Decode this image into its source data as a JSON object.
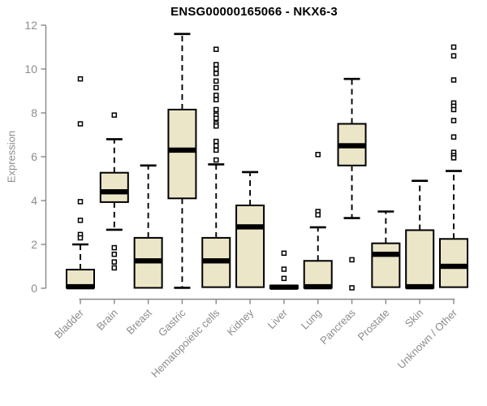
{
  "title": "ENSG00000165066 - NKX6-3",
  "chart_data": {
    "type": "boxplot",
    "title": "ENSG00000165066 - NKX6-3",
    "xlabel": "",
    "ylabel": "Expression",
    "ylim": [
      0,
      12
    ],
    "yticks": [
      0,
      2,
      4,
      6,
      8,
      10,
      12
    ],
    "grid": false,
    "legend": "none",
    "categories": [
      "Bladder",
      "Brain",
      "Breast",
      "Gastric",
      "Hematopoietic cells",
      "Kidney",
      "Liver",
      "Lung",
      "Pancreas",
      "Prostate",
      "Skin",
      "Unknown / Other"
    ],
    "boxes": [
      {
        "category": "Bladder",
        "whisker_low": 0.02,
        "q1": 0.02,
        "median": 0.07,
        "q3": 0.85,
        "whisker_high": 2.0,
        "outliers": [
          9.55,
          7.5,
          3.95,
          3.1,
          2.45,
          2.3
        ]
      },
      {
        "category": "Brain",
        "whisker_low": 2.67,
        "q1": 3.93,
        "median": 4.4,
        "q3": 5.27,
        "whisker_high": 6.8,
        "outliers": [
          7.9,
          1.85,
          1.55,
          1.2,
          0.93
        ]
      },
      {
        "category": "Breast",
        "whisker_low": 0.02,
        "q1": 0.02,
        "median": 1.25,
        "q3": 2.3,
        "whisker_high": 5.6,
        "outliers": []
      },
      {
        "category": "Gastric",
        "whisker_low": 0.02,
        "q1": 4.1,
        "median": 6.3,
        "q3": 8.15,
        "whisker_high": 11.6,
        "outliers": []
      },
      {
        "category": "Hematopoietic cells",
        "whisker_low": 0.05,
        "q1": 0.05,
        "median": 1.25,
        "q3": 2.3,
        "whisker_high": 5.65,
        "outliers": [
          10.9,
          10.2,
          10.0,
          9.8,
          9.45,
          9.15,
          8.8,
          8.6,
          8.15,
          7.9,
          7.75,
          7.5,
          7.4,
          6.7,
          6.5,
          6.3,
          5.85
        ]
      },
      {
        "category": "Kidney",
        "whisker_low": 0.05,
        "q1": 0.05,
        "median": 2.8,
        "q3": 3.78,
        "whisker_high": 5.3,
        "outliers": []
      },
      {
        "category": "Liver",
        "whisker_low": 0.0,
        "q1": 0.0,
        "median": 0.05,
        "q3": 0.12,
        "whisker_high": 0.12,
        "outliers": [
          1.6,
          0.87,
          0.45
        ]
      },
      {
        "category": "Lung",
        "whisker_low": 0.02,
        "q1": 0.02,
        "median": 0.07,
        "q3": 1.25,
        "whisker_high": 2.78,
        "outliers": [
          6.1,
          3.5,
          3.35
        ]
      },
      {
        "category": "Pancreas",
        "whisker_low": 3.2,
        "q1": 5.6,
        "median": 6.5,
        "q3": 7.5,
        "whisker_high": 9.55,
        "outliers": [
          1.3,
          0.02
        ]
      },
      {
        "category": "Prostate",
        "whisker_low": 0.05,
        "q1": 0.05,
        "median": 1.55,
        "q3": 2.05,
        "whisker_high": 3.5,
        "outliers": []
      },
      {
        "category": "Skin",
        "whisker_low": 0.02,
        "q1": 0.02,
        "median": 0.07,
        "q3": 2.65,
        "whisker_high": 4.9,
        "outliers": []
      },
      {
        "category": "Unknown / Other",
        "whisker_low": 0.05,
        "q1": 0.05,
        "median": 1.0,
        "q3": 2.25,
        "whisker_high": 5.35,
        "outliers": [
          11.0,
          10.6,
          9.5,
          8.45,
          8.3,
          8.15,
          7.65,
          6.9,
          6.2,
          6.05,
          5.95
        ]
      }
    ],
    "colors": {
      "box_fill": "#ece6c8",
      "box_stroke": "#000000",
      "median": "#000000",
      "axis": "#888888",
      "tick_label": "#8c8c8c",
      "title": "#000000",
      "background": "#ffffff"
    }
  }
}
